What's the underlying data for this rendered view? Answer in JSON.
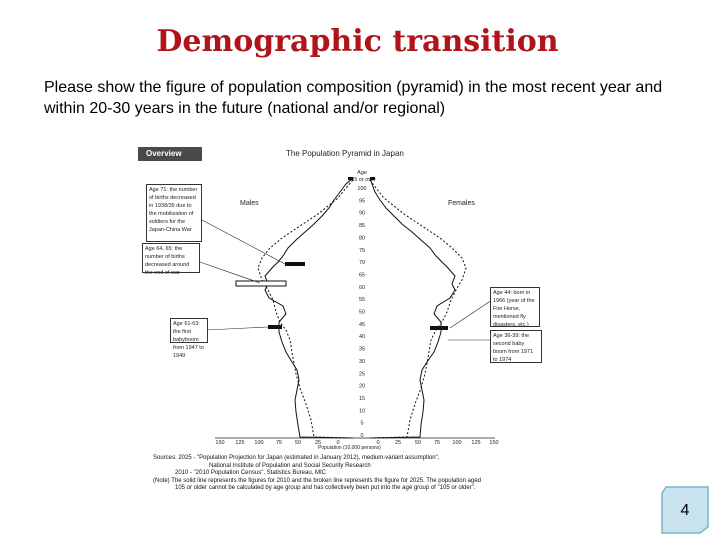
{
  "slide": {
    "title": "Demographic transition",
    "question": "Please show the figure of population composition (pyramid) in the most recent year and within 20-30 years in the future (national and/or regional)",
    "page_number": "4",
    "colors": {
      "title": "#b0141a",
      "badge_fill": "#c8e3ee",
      "badge_border": "#7ab6cf"
    }
  },
  "figure": {
    "overview_tag": "Overview",
    "title": "The Population Pyramid in Japan",
    "age_header": "Age",
    "age_top": "105 or over",
    "male_label": "Males",
    "female_label": "Females",
    "age_ticks": [
      "100",
      "95",
      "90",
      "85",
      "80",
      "75",
      "70",
      "65",
      "60",
      "55",
      "50",
      "45",
      "40",
      "35",
      "30",
      "25",
      "20",
      "15",
      "10",
      "5",
      "0"
    ],
    "x_ticks_left": [
      "150",
      "125",
      "100",
      "75",
      "50",
      "25",
      "0"
    ],
    "x_ticks_right": [
      "0",
      "25",
      "50",
      "75",
      "100",
      "125",
      "150"
    ],
    "x_axis_label": "Population (10,000 persons)",
    "notes_left": [
      "Age 71: the number of births decreased in 1938/39 due to the mobilization of soldiers for the Japan-China War",
      "Age 64, 65: the number of births decreased around the end of war",
      "Age 61-63: the first babyboom from 1947 to 1949"
    ],
    "notes_right": [
      "Age 44: born in 1966 (year of the Fire Horse, mentioned fly disasters, etc.)",
      "Age 36-39: the second baby boom from 1971 to 1974"
    ],
    "sources": [
      "Sources: 2025 - \"Population Projection for Japan (estimated in January 2012), medium-variant assumption\",",
      "National Institute of Population and Social Security Research",
      "2010 - \"2010 Population Census\", Statistics Bureau, MIC",
      "(Note) The solid line represents the figures for 2010 and the broken line represents the figure for 2025. The population aged",
      "105 or older cannot be calculated by age group and has collectively been put into the age group of \"105 or older\"."
    ]
  }
}
